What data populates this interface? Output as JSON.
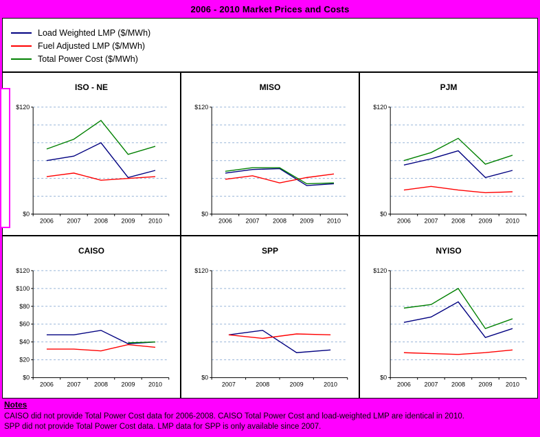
{
  "header": {
    "title": "2006 - 2010 Market Prices and Costs"
  },
  "legend": {
    "items": [
      {
        "label": "Load Weighted LMP ($/MWh)",
        "color": "#000080"
      },
      {
        "label": "Fuel Adjusted LMP ($/MWh)",
        "color": "#FF0000"
      },
      {
        "label": "Total Power Cost ($/MWh)",
        "color": "#008000"
      }
    ]
  },
  "colors": {
    "background": "#FF00FF",
    "panel": "#FFFFFF",
    "gridline": "#95B3D7",
    "axis": "#000000"
  },
  "chart_data": [
    {
      "type": "line",
      "title": "ISO - NE",
      "x": [
        "2006",
        "2007",
        "2008",
        "2009",
        "2010"
      ],
      "ylim": [
        0,
        120
      ],
      "grid_interval": 20,
      "grid": true,
      "ytick_prefix": "$",
      "yticks_labeled": [
        0,
        120
      ],
      "series": [
        {
          "name": "Load Weighted LMP ($/MWh)",
          "color": "#000080",
          "values": [
            60,
            65,
            80,
            41,
            49
          ]
        },
        {
          "name": "Fuel Adjusted LMP ($/MWh)",
          "color": "#FF0000",
          "values": [
            42,
            46,
            38,
            40,
            42
          ]
        },
        {
          "name": "Total Power Cost ($/MWh)",
          "color": "#008000",
          "values": [
            73,
            84,
            105,
            67,
            76
          ]
        }
      ]
    },
    {
      "type": "line",
      "title": "MISO",
      "x": [
        "2006",
        "2007",
        "2008",
        "2009",
        "2010"
      ],
      "ylim": [
        0,
        120
      ],
      "grid_interval": 20,
      "grid": true,
      "ytick_prefix": "$",
      "yticks_labeled": [
        0,
        120
      ],
      "series": [
        {
          "name": "Load Weighted LMP ($/MWh)",
          "color": "#000080",
          "values": [
            46,
            50,
            51,
            32,
            34
          ]
        },
        {
          "name": "Fuel Adjusted LMP ($/MWh)",
          "color": "#FF0000",
          "values": [
            39,
            43,
            35,
            41,
            45
          ]
        },
        {
          "name": "Total Power Cost ($/MWh)",
          "color": "#008000",
          "values": [
            48,
            52,
            52,
            34,
            35
          ]
        }
      ]
    },
    {
      "type": "line",
      "title": "PJM",
      "x": [
        "2006",
        "2007",
        "2008",
        "2009",
        "2010"
      ],
      "ylim": [
        0,
        120
      ],
      "grid_interval": 20,
      "grid": true,
      "ytick_prefix": "$",
      "yticks_labeled": [
        0,
        120
      ],
      "series": [
        {
          "name": "Load Weighted LMP ($/MWh)",
          "color": "#000080",
          "values": [
            55,
            62,
            71,
            41,
            49
          ]
        },
        {
          "name": "Fuel Adjusted LMP ($/MWh)",
          "color": "#FF0000",
          "values": [
            27,
            31,
            27,
            24,
            25
          ]
        },
        {
          "name": "Total Power Cost ($/MWh)",
          "color": "#008000",
          "values": [
            60,
            69,
            85,
            56,
            66
          ]
        }
      ]
    },
    {
      "type": "line",
      "title": "CAISO",
      "x": [
        "2006",
        "2007",
        "2008",
        "2009",
        "2010"
      ],
      "ylim": [
        0,
        120
      ],
      "grid_interval": 20,
      "grid": true,
      "ytick_prefix": "$",
      "yticks_labeled": [
        0,
        20,
        40,
        60,
        80,
        100,
        120
      ],
      "series": [
        {
          "name": "Load Weighted LMP ($/MWh)",
          "color": "#000080",
          "values": [
            48,
            48,
            53,
            38,
            40
          ]
        },
        {
          "name": "Fuel Adjusted LMP ($/MWh)",
          "color": "#FF0000",
          "values": [
            32,
            32,
            30,
            37,
            34
          ]
        },
        {
          "name": "Total Power Cost ($/MWh)",
          "color": "#008000",
          "values": [
            null,
            null,
            null,
            39,
            40
          ]
        }
      ]
    },
    {
      "type": "line",
      "title": "SPP",
      "x": [
        "2007",
        "2008",
        "2009",
        "2010"
      ],
      "ylim": [
        0,
        120
      ],
      "grid_interval": 20,
      "grid": true,
      "ytick_prefix": "$",
      "yticks_labeled": [
        0,
        120
      ],
      "series": [
        {
          "name": "Load Weighted LMP ($/MWh)",
          "color": "#000080",
          "values": [
            48,
            53,
            28,
            31
          ]
        },
        {
          "name": "Fuel Adjusted LMP ($/MWh)",
          "color": "#FF0000",
          "values": [
            48,
            44,
            49,
            48
          ]
        }
      ]
    },
    {
      "type": "line",
      "title": "NYISO",
      "x": [
        "2006",
        "2007",
        "2008",
        "2009",
        "2010"
      ],
      "ylim": [
        0,
        120
      ],
      "grid_interval": 20,
      "grid": true,
      "ytick_prefix": "$",
      "yticks_labeled": [
        0,
        120
      ],
      "series": [
        {
          "name": "Load Weighted LMP ($/MWh)",
          "color": "#000080",
          "values": [
            62,
            68,
            85,
            45,
            55
          ]
        },
        {
          "name": "Fuel Adjusted LMP ($/MWh)",
          "color": "#FF0000",
          "values": [
            28,
            27,
            26,
            28,
            31
          ]
        },
        {
          "name": "Total Power Cost ($/MWh)",
          "color": "#008000",
          "values": [
            78,
            82,
            100,
            55,
            66
          ]
        }
      ]
    }
  ],
  "notes": {
    "heading": "Notes",
    "lines": [
      "CAISO did not provide Total Power Cost data for 2006-2008.   CAISO Total Power Cost and load-weighted LMP are identical in 2010.",
      "SPP did not provide Total Power Cost data.  LMP data for SPP is only available since 2007."
    ]
  }
}
